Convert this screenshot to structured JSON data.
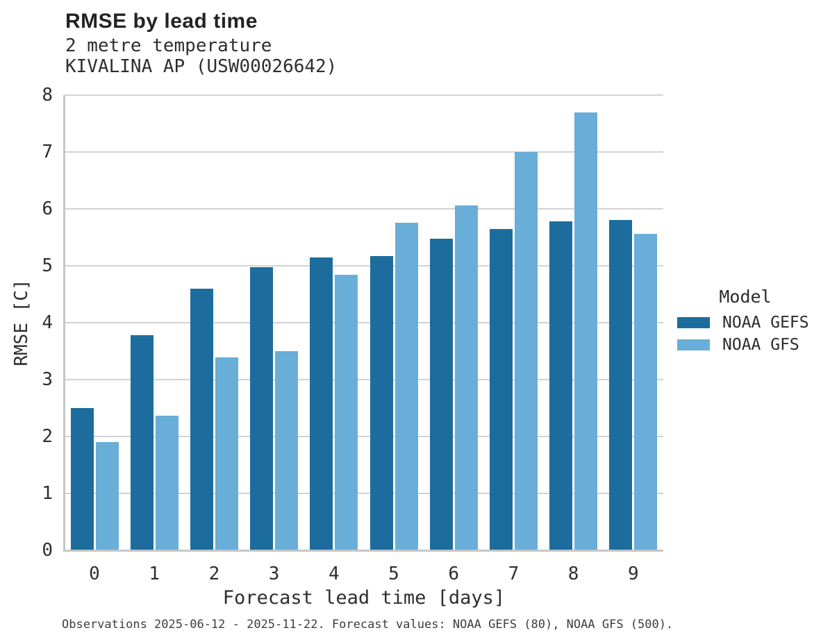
{
  "header": {
    "title": "RMSE by lead time",
    "subtitle_variable": "2 metre temperature",
    "subtitle_station": "KIVALINA AP (USW00026642)"
  },
  "chart_data": {
    "type": "bar",
    "title": "RMSE by lead time",
    "subtitle": [
      "2 metre temperature",
      "KIVALINA AP (USW00026642)"
    ],
    "categories": [
      "0",
      "1",
      "2",
      "3",
      "4",
      "5",
      "6",
      "7",
      "8",
      "9"
    ],
    "series": [
      {
        "name": "NOAA GEFS",
        "color": "#1c6d9d",
        "values": [
          2.5,
          3.78,
          4.6,
          4.98,
          5.15,
          5.17,
          5.47,
          5.65,
          5.78,
          5.8
        ]
      },
      {
        "name": "NOAA GFS",
        "color": "#69aed8",
        "values": [
          1.9,
          2.37,
          3.39,
          3.5,
          4.84,
          5.76,
          6.06,
          7.0,
          7.7,
          5.56
        ]
      }
    ],
    "xlabel": "Forecast lead time [days]",
    "ylabel": "RMSE [C]",
    "ylim": [
      0,
      8
    ],
    "ytick_step": 1,
    "grid": true,
    "legend_title": "Model",
    "legend_position": "right"
  },
  "footer": {
    "note": "Observations 2025-06-12 - 2025-11-22. Forecast values: NOAA GEFS (80), NOAA GFS (500)."
  },
  "colors": {
    "series_noaa_gefs": "#1c6d9d",
    "series_noaa_gfs": "#69aed8",
    "gridline": "#d2d2d2",
    "axis_line": "#c6c6c6",
    "background": "#ffffff"
  }
}
